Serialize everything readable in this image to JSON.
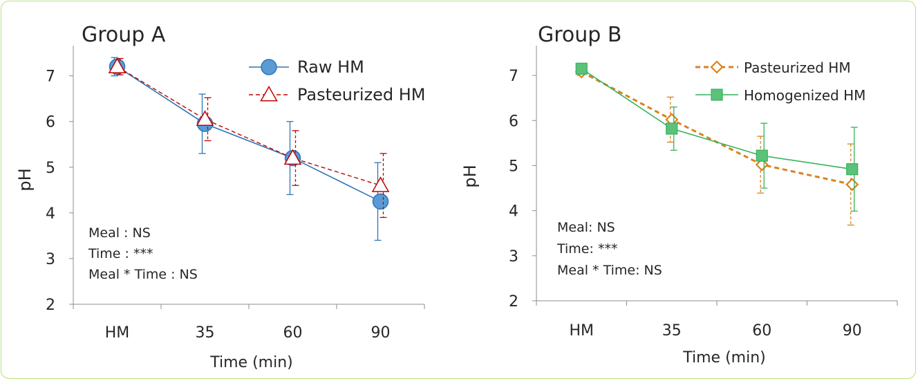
{
  "chart_data": [
    {
      "type": "line",
      "title": "Group A",
      "xlabel": "Time (min)",
      "ylabel": "pH",
      "categories": [
        "HM",
        "35",
        "60",
        "90"
      ],
      "ylim": [
        2,
        7.6
      ],
      "yticks": [
        2,
        3,
        4,
        5,
        6,
        7
      ],
      "grid": false,
      "legend": "top-right",
      "series": [
        {
          "name": "Raw HM",
          "values": [
            7.2,
            5.95,
            5.2,
            4.25
          ],
          "errors": [
            0.2,
            0.65,
            0.8,
            0.85
          ],
          "color": "#2e75b6",
          "marker": "circle",
          "marker_fill": "#5b9bd5",
          "line_style": "solid"
        },
        {
          "name": "Pasteurized HM",
          "values": [
            7.2,
            6.05,
            5.2,
            4.6
          ],
          "errors": [
            0.18,
            0.47,
            0.6,
            0.7
          ],
          "color": "#c00000",
          "marker": "triangle",
          "marker_fill": "#ffffff",
          "line_style": "dashed"
        }
      ],
      "annotations": [
        "Meal : NS",
        "Time : ***",
        "Meal * Time : NS"
      ]
    },
    {
      "type": "line",
      "title": "Group B",
      "xlabel": "Time (min)",
      "ylabel": "pH",
      "categories": [
        "HM",
        "35",
        "60",
        "90"
      ],
      "ylim": [
        2,
        7.6
      ],
      "yticks": [
        2,
        3,
        4,
        5,
        6,
        7
      ],
      "grid": false,
      "legend": "top-right",
      "series": [
        {
          "name": "Pasteurized HM",
          "values": [
            7.08,
            6.02,
            5.02,
            4.58
          ],
          "errors": [
            0.08,
            0.5,
            0.63,
            0.9
          ],
          "color": "#d9821e",
          "marker": "diamond",
          "marker_fill": "#ffffff",
          "line_style": "dashed"
        },
        {
          "name": "Homogenized HM",
          "values": [
            7.15,
            5.82,
            5.22,
            4.92
          ],
          "errors": [
            0.05,
            0.48,
            0.72,
            0.93
          ],
          "color": "#33b35a",
          "marker": "square",
          "marker_fill": "#5cc17a",
          "line_style": "solid"
        }
      ],
      "annotations": [
        "Meal: NS",
        "Time: ***",
        "Meal * Time: NS"
      ]
    }
  ]
}
